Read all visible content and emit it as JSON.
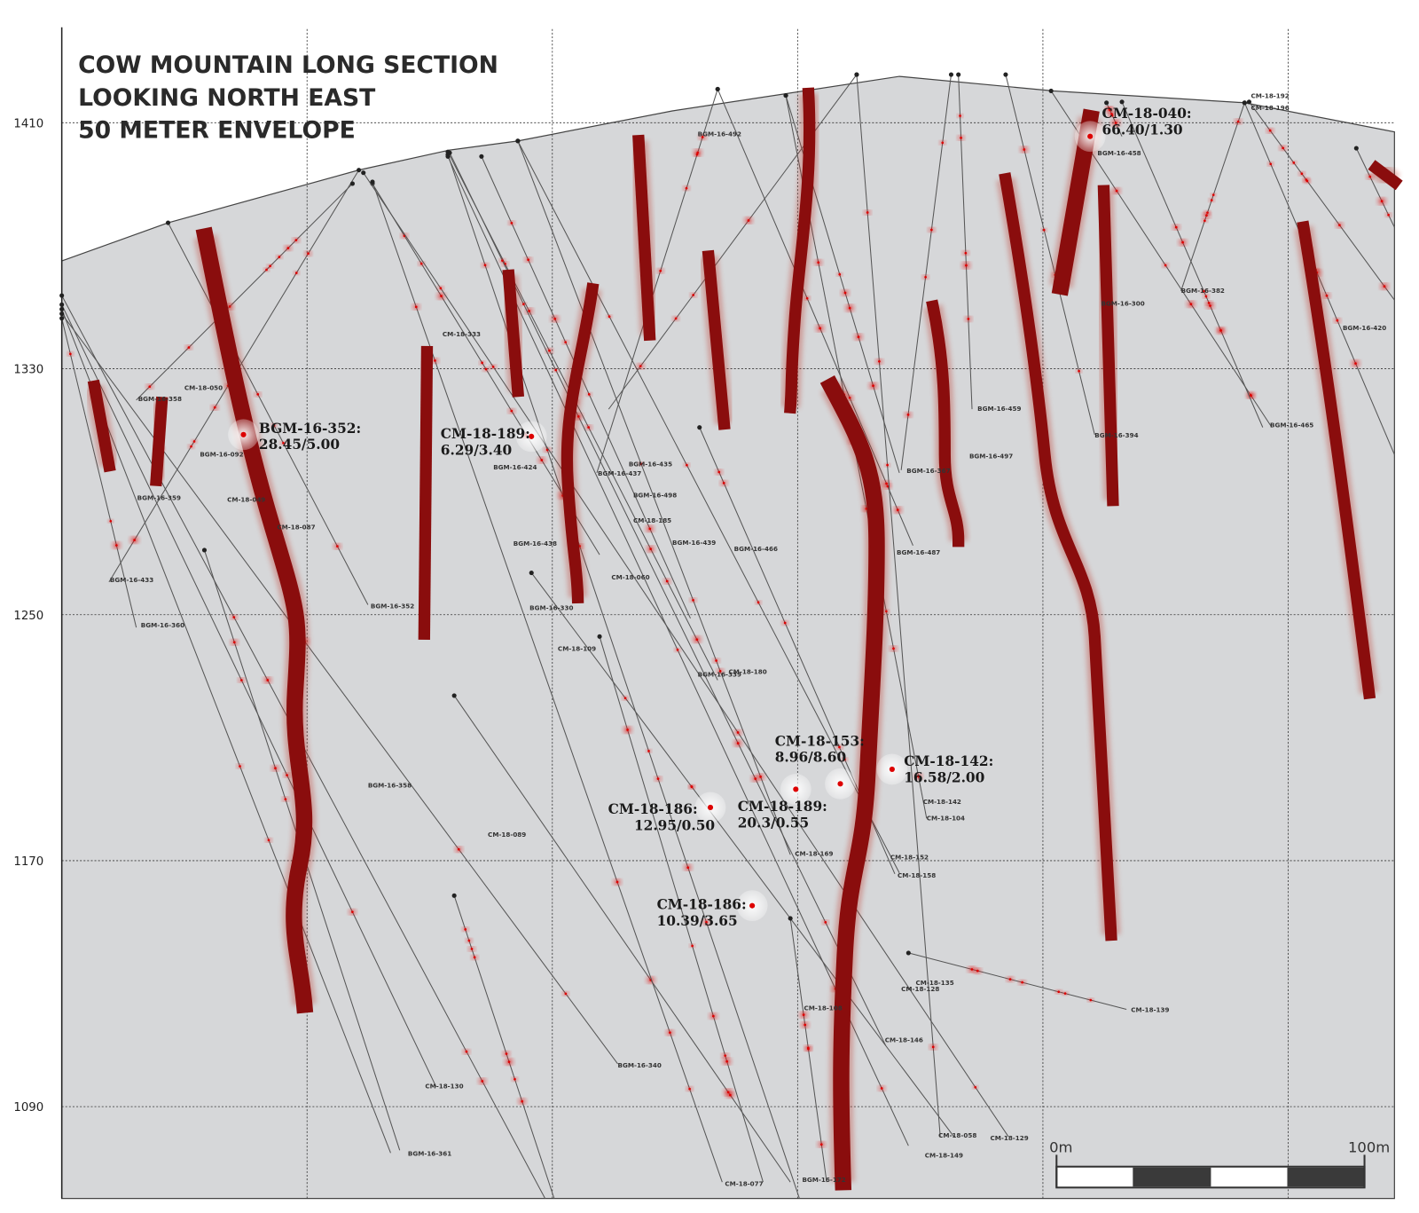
{
  "title": [
    "COW MOUNTAIN LONG SECTION",
    "LOOKING NORTH EAST",
    "50 METER ENVELOPE"
  ],
  "elevation_axis": {
    "ticks": [
      1410,
      1330,
      1250,
      1170,
      1090
    ]
  },
  "scale_bar": {
    "start": "0m",
    "end": "100m"
  },
  "intercepts": [
    {
      "hole": "BGM-16-352:",
      "result": "28.45/5.00"
    },
    {
      "hole": "CM-18-189:",
      "result": "6.29/3.40"
    },
    {
      "hole": "CM-18-040:",
      "result": "66.40/1.30"
    },
    {
      "hole": "CM-18-153:",
      "result": "8.96/8.60"
    },
    {
      "hole": "CM-18-142:",
      "result": "16.58/2.00"
    },
    {
      "hole": "CM-18-186:",
      "result": "12.95/0.50"
    },
    {
      "hole": "CM-18-189:",
      "result": "20.3/0.55"
    },
    {
      "hole": "CM-18-186:",
      "result": "10.39/3.65"
    }
  ],
  "hole_labels": [
    "BGM-16-492",
    "CM-18-192",
    "CM-18-196",
    "BGM-16-458",
    "CM-18-333",
    "BGM-16-300",
    "BGM-16-382",
    "BGM-16-420",
    "CM-18-050",
    "BGM-16-358",
    "BGM-16-459",
    "BGM-16-394",
    "BGM-16-465",
    "BGM-16-497",
    "BGM-16-424",
    "BGM-16-435",
    "BGM-16-437",
    "BGM-16-092",
    "BGM-16-359",
    "CM-18-049",
    "BGM-16-498",
    "BGM-16-367",
    "CM-18-185",
    "CM-18-087",
    "BGM-16-438",
    "BGM-16-439",
    "BGM-16-466",
    "BGM-16-487",
    "BGM-16-433",
    "CM-18-060",
    "BGM-16-352",
    "BGM-16-330",
    "BGM-16-360",
    "CM-18-109",
    "BGM-16-339",
    "CM-18-180",
    "BGM-16-358",
    "CM-18-142",
    "CM-18-104",
    "CM-18-089",
    "CM-18-169",
    "CM-18-152",
    "CM-18-158",
    "CM-18-135",
    "CM-18-128",
    "CM-18-139",
    "CM-18-108",
    "CM-18-146",
    "BGM-16-340",
    "CM-18-130",
    "CM-18-058",
    "CM-18-129",
    "BGM-16-361",
    "CM-18-149",
    "CM-18-077",
    "BGM-16-172"
  ]
}
